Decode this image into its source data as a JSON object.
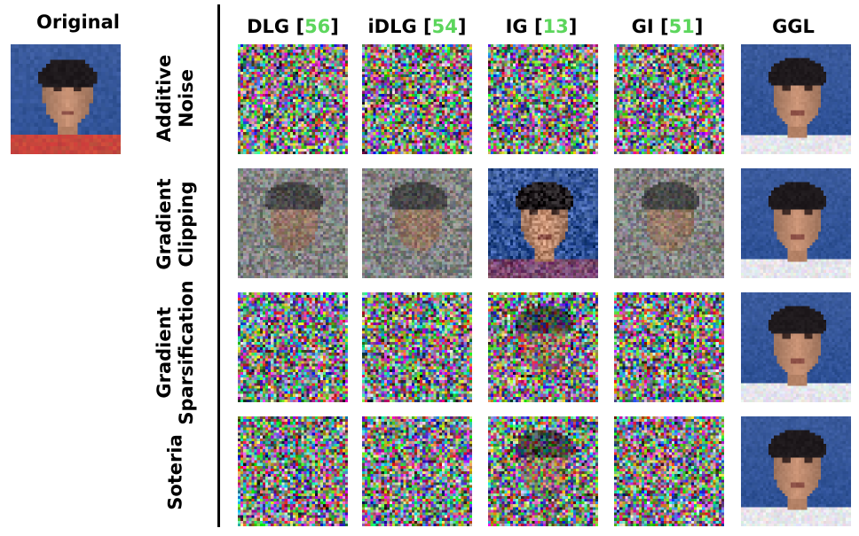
{
  "original_label": "Original",
  "columns": [
    {
      "name": "DLG",
      "ref": "56"
    },
    {
      "name": "iDLG",
      "ref": "54"
    },
    {
      "name": "IG",
      "ref": "13"
    },
    {
      "name": "GI",
      "ref": "51"
    },
    {
      "name": "GGL",
      "ref": ""
    }
  ],
  "rows": [
    {
      "line1": "Additive",
      "line2": "Noise"
    },
    {
      "line1": "Gradient",
      "line2": "Clipping"
    },
    {
      "line1": "Gradient",
      "line2": "Sparsification"
    },
    {
      "line1": "Soteria",
      "line2": ""
    }
  ],
  "colors": {
    "reference_green": "#5cd65c",
    "divider": "#000000",
    "background_blue": "#3a5a9c"
  },
  "tile_kinds": [
    [
      "noise-color",
      "noise-color",
      "noise-color",
      "noise-color",
      "face"
    ],
    [
      "noise-gray-face",
      "noise-gray-face",
      "face-noisy",
      "noise-gray-face",
      "face"
    ],
    [
      "noise-color",
      "noise-color",
      "noise-color-face",
      "noise-color",
      "face"
    ],
    [
      "noise-color",
      "noise-color",
      "noise-color-face",
      "noise-color",
      "face"
    ]
  ]
}
